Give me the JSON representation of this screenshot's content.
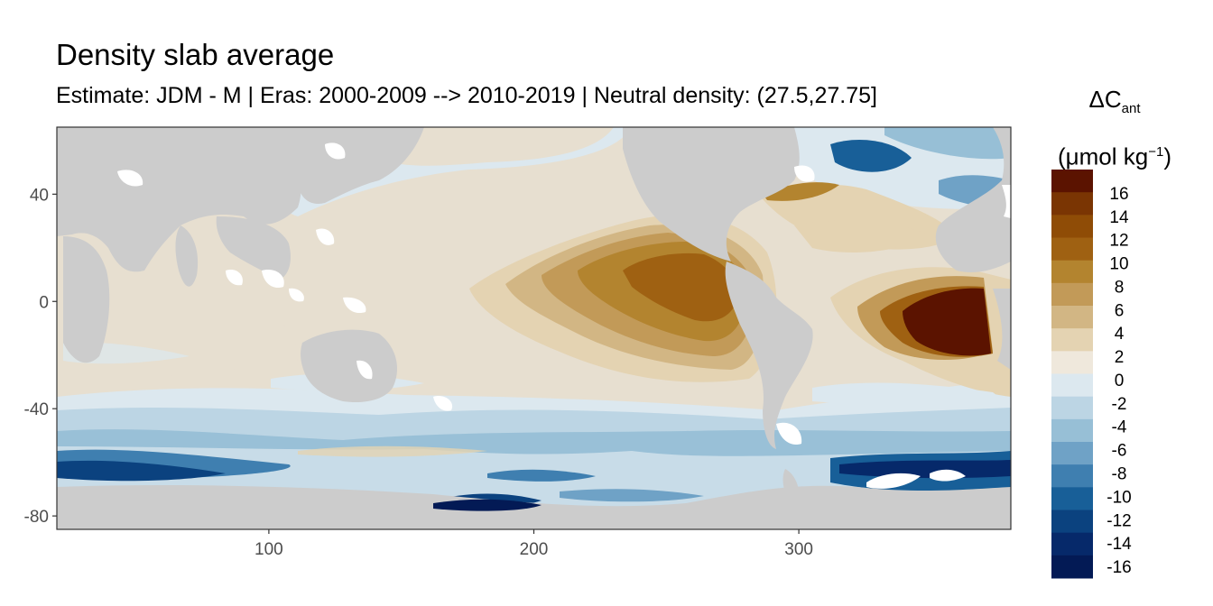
{
  "title": "Density slab average",
  "subtitle": "Estimate: JDM - M | Eras: 2000-2009 --> 2010-2019 | Neutral density: (27.5,27.75]",
  "legend": {
    "symbol": "ΔC",
    "subscript": "ant",
    "unit_prefix": "(μmol kg",
    "unit_exp": "−1",
    "unit_suffix": ")",
    "labels": [
      "16",
      "14",
      "12",
      "10",
      "8",
      "6",
      "4",
      "2",
      "0",
      "-2",
      "-4",
      "-6",
      "-8",
      "-10",
      "-12",
      "-14",
      "-16"
    ],
    "colors": [
      "#5b1300",
      "#7a3503",
      "#8f4c06",
      "#9f6112",
      "#b3842f",
      "#c29a58",
      "#d2b684",
      "#e4d3b2",
      "#efe8dc",
      "#dce8ef",
      "#bcd5e4",
      "#97bfd6",
      "#6fa2c6",
      "#3f7fb0",
      "#185f98",
      "#0b427f",
      "#06296a",
      "#031a55"
    ]
  },
  "chart_data": {
    "type": "map",
    "title": "Density slab average",
    "subtitle": "Estimate: JDM - M | Eras: 2000-2009 --> 2010-2019 | Neutral density: (27.5,27.75]",
    "xlabel": "",
    "ylabel": "",
    "xlim": [
      20,
      380
    ],
    "ylim": [
      -85,
      65
    ],
    "xticks": [
      100,
      200,
      300
    ],
    "yticks": [
      40,
      0,
      -40,
      -80
    ],
    "legend_position": "right",
    "colorbar_range": [
      -17,
      18
    ],
    "colorbar_breaks": [
      16,
      14,
      12,
      10,
      8,
      6,
      4,
      2,
      0,
      -2,
      -4,
      -6,
      -8,
      -10,
      -12,
      -14,
      -16
    ]
  }
}
